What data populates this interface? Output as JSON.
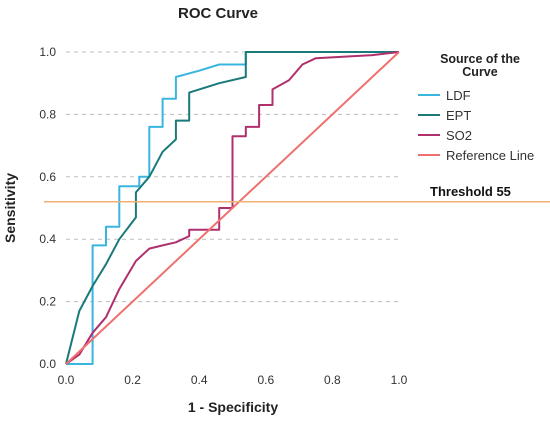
{
  "chart_data": {
    "type": "line",
    "title": "ROC Curve",
    "xlabel": "1 - Specificity",
    "ylabel": "Sensitivity",
    "xlim": [
      0,
      1
    ],
    "ylim": [
      0,
      1
    ],
    "x_ticks": [
      "0.0",
      "0.2",
      "0.4",
      "0.6",
      "0.8",
      "1.0"
    ],
    "y_ticks": [
      "0.0",
      "0.2",
      "0.4",
      "0.6",
      "0.8",
      "1.0"
    ],
    "grid": "horizontal dashed",
    "legend": {
      "title": "Source of the Curve",
      "title_lines": [
        "Source of the",
        "Curve"
      ],
      "placement": "right"
    },
    "series": [
      {
        "name": "LDF",
        "color": "#3ab5e0",
        "points": [
          [
            0,
            0
          ],
          [
            0.08,
            0
          ],
          [
            0.08,
            0.38
          ],
          [
            0.12,
            0.38
          ],
          [
            0.12,
            0.44
          ],
          [
            0.16,
            0.44
          ],
          [
            0.16,
            0.57
          ],
          [
            0.22,
            0.57
          ],
          [
            0.22,
            0.6
          ],
          [
            0.25,
            0.6
          ],
          [
            0.25,
            0.76
          ],
          [
            0.29,
            0.76
          ],
          [
            0.29,
            0.85
          ],
          [
            0.33,
            0.85
          ],
          [
            0.33,
            0.92
          ],
          [
            0.4,
            0.94
          ],
          [
            0.46,
            0.96
          ],
          [
            0.54,
            0.96
          ],
          [
            0.54,
            1.0
          ],
          [
            1.0,
            1.0
          ]
        ]
      },
      {
        "name": "EPT",
        "color": "#1a7a7a",
        "points": [
          [
            0,
            0
          ],
          [
            0.04,
            0.17
          ],
          [
            0.04,
            0.17
          ],
          [
            0.08,
            0.25
          ],
          [
            0.12,
            0.32
          ],
          [
            0.16,
            0.4
          ],
          [
            0.21,
            0.47
          ],
          [
            0.21,
            0.55
          ],
          [
            0.25,
            0.6
          ],
          [
            0.29,
            0.68
          ],
          [
            0.33,
            0.72
          ],
          [
            0.33,
            0.78
          ],
          [
            0.37,
            0.78
          ],
          [
            0.37,
            0.87
          ],
          [
            0.46,
            0.9
          ],
          [
            0.54,
            0.92
          ],
          [
            0.54,
            1.0
          ],
          [
            0.75,
            1.0
          ],
          [
            1.0,
            1.0
          ]
        ]
      },
      {
        "name": "SO2",
        "color": "#b0306e",
        "points": [
          [
            0,
            0
          ],
          [
            0.04,
            0.03
          ],
          [
            0.08,
            0.1
          ],
          [
            0.12,
            0.15
          ],
          [
            0.16,
            0.24
          ],
          [
            0.21,
            0.33
          ],
          [
            0.25,
            0.37
          ],
          [
            0.29,
            0.38
          ],
          [
            0.33,
            0.39
          ],
          [
            0.37,
            0.41
          ],
          [
            0.37,
            0.43
          ],
          [
            0.46,
            0.43
          ],
          [
            0.46,
            0.5
          ],
          [
            0.5,
            0.5
          ],
          [
            0.5,
            0.73
          ],
          [
            0.54,
            0.73
          ],
          [
            0.54,
            0.76
          ],
          [
            0.58,
            0.76
          ],
          [
            0.58,
            0.83
          ],
          [
            0.62,
            0.83
          ],
          [
            0.62,
            0.88
          ],
          [
            0.67,
            0.91
          ],
          [
            0.71,
            0.96
          ],
          [
            0.75,
            0.98
          ],
          [
            0.92,
            0.99
          ],
          [
            1.0,
            1.0
          ]
        ]
      },
      {
        "name": "Reference Line",
        "color": "#f07070",
        "points": [
          [
            0,
            0
          ],
          [
            1,
            1
          ]
        ]
      }
    ],
    "annotations": [
      {
        "label": "Threshold 55",
        "type": "horizontal_line",
        "y": 0.52,
        "color": "#f0b070"
      }
    ]
  }
}
